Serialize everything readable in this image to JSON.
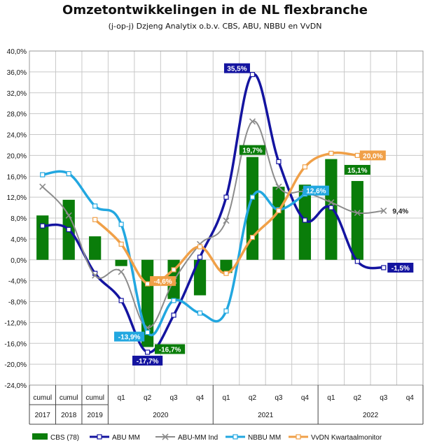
{
  "title": "Omzetontwikkelingen in de NL flexbranche",
  "subtitle": "(j-op-j) Dzjeng  Analytix o.b.v. CBS, ABU, NBBU  en VvDN",
  "chart_data": {
    "type": "bar",
    "x_labels": [
      "cumul",
      "cumul",
      "cumul",
      "q1",
      "q2",
      "q3",
      "q4",
      "q1",
      "q2",
      "q3",
      "q4",
      "q1",
      "q2",
      "q3",
      "q4"
    ],
    "groups": [
      {
        "label": "2017",
        "start": 0,
        "end": 0
      },
      {
        "label": "2018",
        "start": 1,
        "end": 1
      },
      {
        "label": "2019",
        "start": 2,
        "end": 2
      },
      {
        "label": "2020",
        "start": 3,
        "end": 6
      },
      {
        "label": "2021",
        "start": 7,
        "end": 10
      },
      {
        "label": "2022",
        "start": 11,
        "end": 14
      }
    ],
    "ylim": [
      -24,
      40
    ],
    "ytick_step": 4,
    "ytick_labels": [
      "40,0%",
      "36,0%",
      "32,0%",
      "28,0%",
      "24,0%",
      "20,0%",
      "16,0%",
      "12,0%",
      "8,0%",
      "4,0%",
      "0,0%",
      "-4,0%",
      "-8,0%",
      "-12,0%",
      "-16,0%",
      "-20,0%",
      "-24,0%"
    ],
    "grid": true,
    "legend_position": "bottom",
    "series": [
      {
        "name": "CBS (78)",
        "kind": "bar",
        "color": "#0a7d0a",
        "values": [
          8.5,
          11.5,
          4.5,
          -1.2,
          -16.7,
          -7.5,
          -6.8,
          -2.5,
          19.7,
          14.0,
          14.4,
          19.3,
          15.1,
          null,
          null
        ]
      },
      {
        "name": "ABU MM",
        "kind": "line",
        "color": "#1414a0",
        "marker": "square",
        "values": [
          6.5,
          5.8,
          -2.6,
          -7.8,
          -17.7,
          -10.6,
          0.5,
          12.0,
          35.5,
          18.8,
          7.6,
          10.0,
          -0.3,
          -1.5,
          null
        ]
      },
      {
        "name": "ABU-MM Ind",
        "kind": "line",
        "color": "#8c8c8c",
        "marker": "x",
        "values": [
          14.0,
          8.5,
          -3.0,
          -2.3,
          -13.0,
          -4.0,
          3.0,
          7.5,
          26.5,
          14.0,
          13.0,
          11.0,
          9.0,
          9.4,
          null
        ]
      },
      {
        "name": "NBBU MM",
        "kind": "line",
        "color": "#22a7e0",
        "marker": "square",
        "values": [
          16.3,
          16.5,
          10.3,
          6.8,
          -13.9,
          -7.8,
          -10.2,
          -9.8,
          12.0,
          9.6,
          12.6,
          null,
          null,
          null,
          null
        ]
      },
      {
        "name": "VvDN Kwartaalmonitor",
        "kind": "line",
        "color": "#f0a048",
        "marker": "square",
        "values": [
          null,
          null,
          7.7,
          3.0,
          -4.6,
          -1.9,
          2.5,
          -2.6,
          4.3,
          9.4,
          17.8,
          20.4,
          20.0,
          null,
          null
        ]
      }
    ],
    "data_labels": [
      {
        "text": "35,5%",
        "series": 1,
        "index": 8,
        "style": "blue-box"
      },
      {
        "text": "19,7%",
        "series": 0,
        "index": 8,
        "style": "green-box"
      },
      {
        "text": "15,1%",
        "series": 0,
        "index": 12,
        "style": "green-box"
      },
      {
        "text": "20,0%",
        "series": 4,
        "index": 12,
        "style": "orange-box"
      },
      {
        "text": "12,6%",
        "series": 3,
        "index": 10,
        "style": "cyan-box"
      },
      {
        "text": "9,4%",
        "series": 2,
        "index": 13,
        "style": "plain"
      },
      {
        "text": "-1,5%",
        "series": 1,
        "index": 13,
        "style": "blue-box"
      },
      {
        "text": "-4,6%",
        "series": 4,
        "index": 4,
        "style": "orange-box"
      },
      {
        "text": "-13,9%",
        "series": 3,
        "index": 4,
        "style": "cyan-box"
      },
      {
        "text": "-16,7%",
        "series": 0,
        "index": 4,
        "style": "green-box"
      },
      {
        "text": "-17,7%",
        "series": 1,
        "index": 4,
        "style": "blue-box"
      }
    ]
  }
}
